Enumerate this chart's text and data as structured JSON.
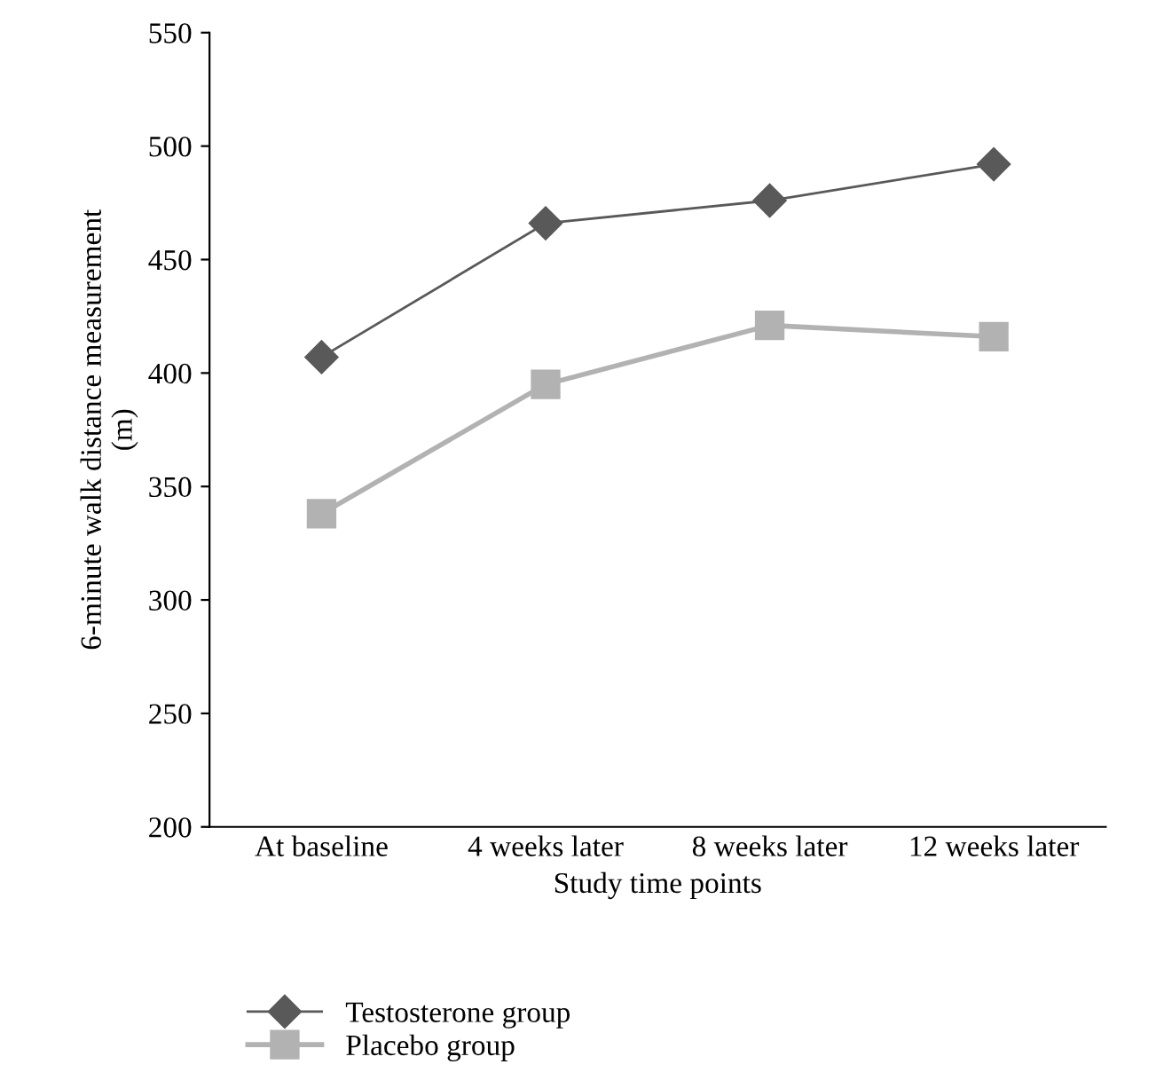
{
  "chart_data": {
    "type": "line",
    "xlabel": "Study time points",
    "ylabel": "6-minute walk distance measurement\n(m)",
    "categories": [
      "At baseline",
      "4 weeks later",
      "8 weeks later",
      "12 weeks later"
    ],
    "series": [
      {
        "name": "Testosterone group",
        "color": "#595959",
        "values": [
          407,
          466,
          476,
          492
        ],
        "marker": "diamond"
      },
      {
        "name": "Placebo group",
        "color": "#b2b2b2",
        "values": [
          338,
          395,
          421,
          416
        ],
        "marker": "square"
      }
    ],
    "ylim": [
      200,
      550
    ],
    "yticks": [
      200,
      250,
      300,
      350,
      400,
      450,
      500,
      550
    ],
    "grid": false,
    "legend": "bottom left",
    "line_style": "solid"
  }
}
